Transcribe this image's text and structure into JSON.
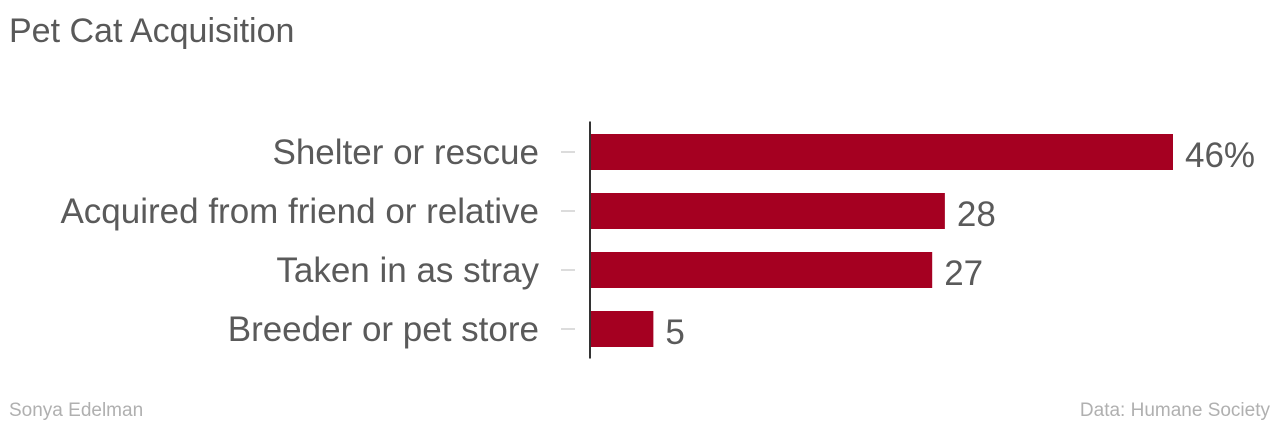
{
  "chart_data": {
    "type": "bar",
    "orientation": "horizontal",
    "title": "Pet Cat Acquisition",
    "categories": [
      "Shelter or rescue",
      "Acquired from friend or relative",
      "Taken in as stray",
      "Breeder or pet store"
    ],
    "values": [
      46,
      28,
      27,
      5
    ],
    "value_labels": [
      "46%",
      "28",
      "27",
      "5"
    ],
    "xlim": [
      0,
      46
    ],
    "grid": false,
    "bar_color": "#a50021",
    "source": "Data: Humane Society",
    "credit": "Sonya Edelman"
  }
}
